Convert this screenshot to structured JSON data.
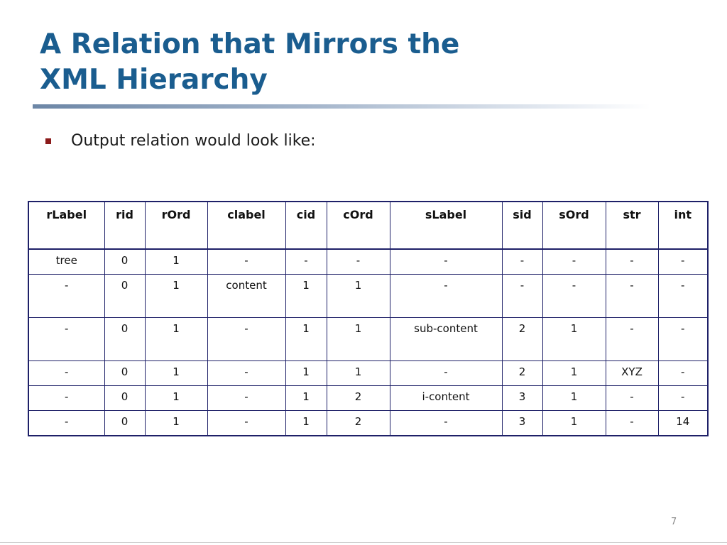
{
  "slide": {
    "title_line1": "A Relation that Mirrors the",
    "title_line2": "XML Hierarchy",
    "bullet": "Output relation would look like:",
    "page_number": "7"
  },
  "table": {
    "headers": [
      "rLabel",
      "rid",
      "rOrd",
      "clabel",
      "cid",
      "cOrd",
      "sLabel",
      "sid",
      "sOrd",
      "str",
      "int"
    ],
    "rows": [
      [
        "tree",
        "0",
        "1",
        "-",
        "-",
        "-",
        "-",
        "-",
        "-",
        "-",
        "-"
      ],
      [
        "-",
        "0",
        "1",
        "content",
        "1",
        "1",
        "-",
        "-",
        "-",
        "-",
        "-"
      ],
      [
        "-",
        "0",
        "1",
        "-",
        "1",
        "1",
        "sub-content",
        "2",
        "1",
        "-",
        "-"
      ],
      [
        "-",
        "0",
        "1",
        "-",
        "1",
        "1",
        "-",
        "2",
        "1",
        "XYZ",
        "-"
      ],
      [
        "-",
        "0",
        "1",
        "-",
        "1",
        "2",
        "i-content",
        "3",
        "1",
        "-",
        "-"
      ],
      [
        "-",
        "0",
        "1",
        "-",
        "1",
        "2",
        "-",
        "3",
        "1",
        "-",
        "14"
      ]
    ]
  },
  "colors": {
    "title": "#1a5d8f",
    "bullet_marker": "#8b1a1a",
    "table_border": "#1e2068"
  }
}
